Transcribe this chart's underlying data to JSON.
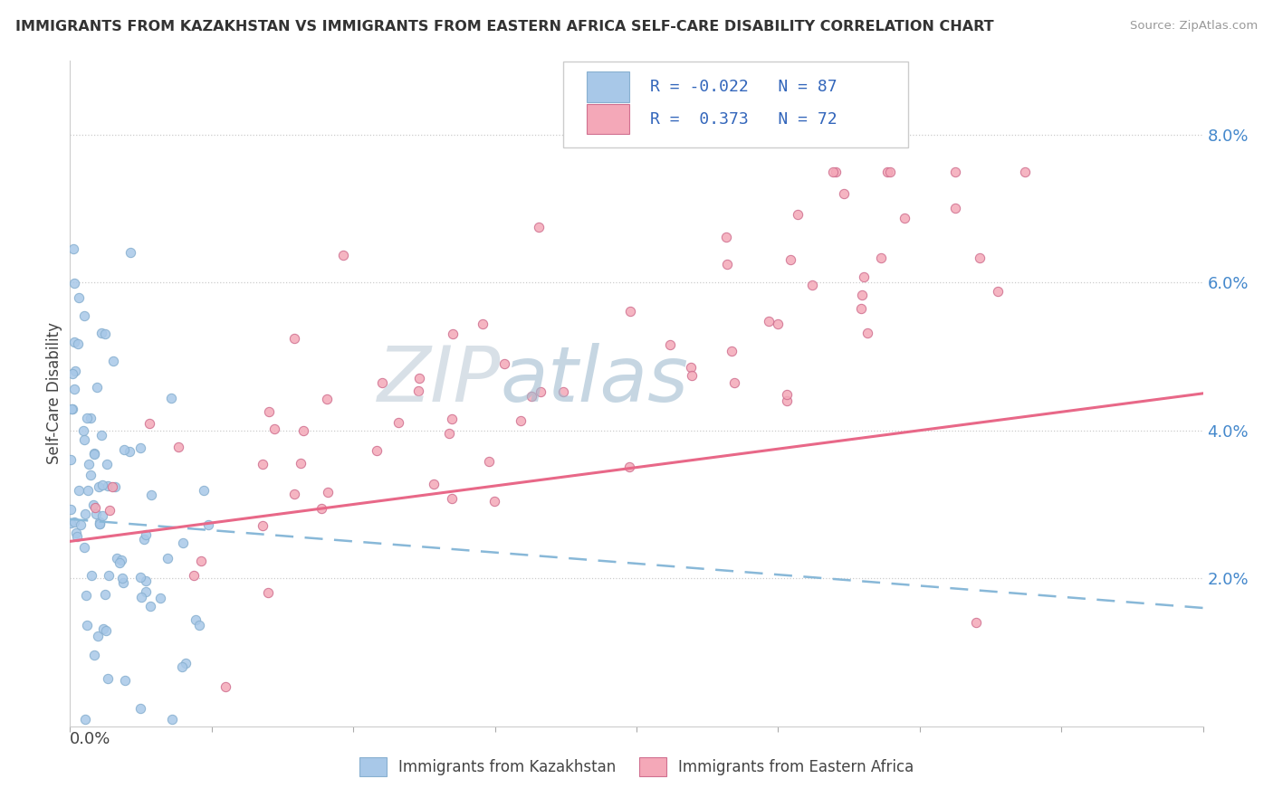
{
  "title": "IMMIGRANTS FROM KAZAKHSTAN VS IMMIGRANTS FROM EASTERN AFRICA SELF-CARE DISABILITY CORRELATION CHART",
  "source": "Source: ZipAtlas.com",
  "ylabel": "Self-Care Disability",
  "legend_label1": "Immigrants from Kazakhstan",
  "legend_label2": "Immigrants from Eastern Africa",
  "R1": "-0.022",
  "N1": "87",
  "R2": "0.373",
  "N2": "72",
  "color1": "#a8c8e8",
  "color2": "#f4a8b8",
  "trendline1_color": "#88b8d8",
  "trendline2_color": "#e86888",
  "watermark_zip": "#c8d8e8",
  "watermark_atlas": "#a8c0d8",
  "background_color": "#ffffff",
  "xlim": [
    0.0,
    0.4
  ],
  "ylim": [
    0.0,
    0.09
  ],
  "ytick_vals": [
    0.02,
    0.04,
    0.06,
    0.08
  ],
  "ytick_labels": [
    "2.0%",
    "4.0%",
    "6.0%",
    "8.0%"
  ],
  "trendline1_x0": 0.0,
  "trendline1_y0": 0.028,
  "trendline1_x1": 0.4,
  "trendline1_y1": 0.016,
  "trendline2_x0": 0.0,
  "trendline2_y0": 0.025,
  "trendline2_x1": 0.4,
  "trendline2_y1": 0.045
}
